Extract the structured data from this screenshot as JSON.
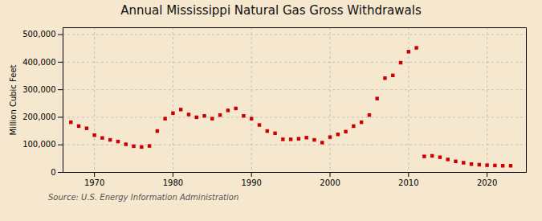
{
  "chart_data": {
    "type": "scatter",
    "title": "Annual Mississippi Natural Gas Gross Withdrawals",
    "ylabel": "Million Cubic Feet",
    "annotations": [
      "Source: U.S. Energy Information Administration"
    ],
    "x": [
      1967,
      1968,
      1969,
      1970,
      1971,
      1972,
      1973,
      1974,
      1975,
      1976,
      1977,
      1978,
      1979,
      1980,
      1981,
      1982,
      1983,
      1984,
      1985,
      1986,
      1987,
      1988,
      1989,
      1990,
      1991,
      1992,
      1993,
      1994,
      1995,
      1996,
      1997,
      1998,
      1999,
      2000,
      2001,
      2002,
      2003,
      2004,
      2005,
      2006,
      2007,
      2008,
      2009,
      2010,
      2011,
      2012,
      2013,
      2014,
      2015,
      2016,
      2017,
      2018,
      2019,
      2020,
      2021,
      2022,
      2023
    ],
    "values": [
      182000,
      168000,
      160000,
      135000,
      125000,
      118000,
      112000,
      102000,
      95000,
      92000,
      96000,
      150000,
      195000,
      215000,
      228000,
      210000,
      200000,
      205000,
      195000,
      208000,
      225000,
      232000,
      205000,
      195000,
      172000,
      150000,
      142000,
      120000,
      120000,
      122000,
      126000,
      118000,
      108000,
      128000,
      138000,
      148000,
      168000,
      182000,
      208000,
      268000,
      342000,
      352000,
      398000,
      438000,
      452000,
      58000,
      60000,
      55000,
      47000,
      40000,
      35000,
      30000,
      28000,
      26000,
      25000,
      24000,
      24000
    ],
    "color": "#cc0000",
    "marker": "square",
    "xlim": [
      1966,
      2025
    ],
    "ylim": [
      0,
      525000
    ],
    "xticks": [
      1970,
      1980,
      1990,
      2000,
      2010,
      2020
    ],
    "yticks": [
      0,
      {
        "value": 100000,
        "label": "100,000"
      },
      {
        "value": 200000,
        "label": "200,000"
      },
      {
        "value": 300000,
        "label": "300,000"
      },
      {
        "value": 400000,
        "label": "400,000"
      },
      {
        "value": 500000,
        "label": "500,000"
      }
    ],
    "grid": true
  }
}
